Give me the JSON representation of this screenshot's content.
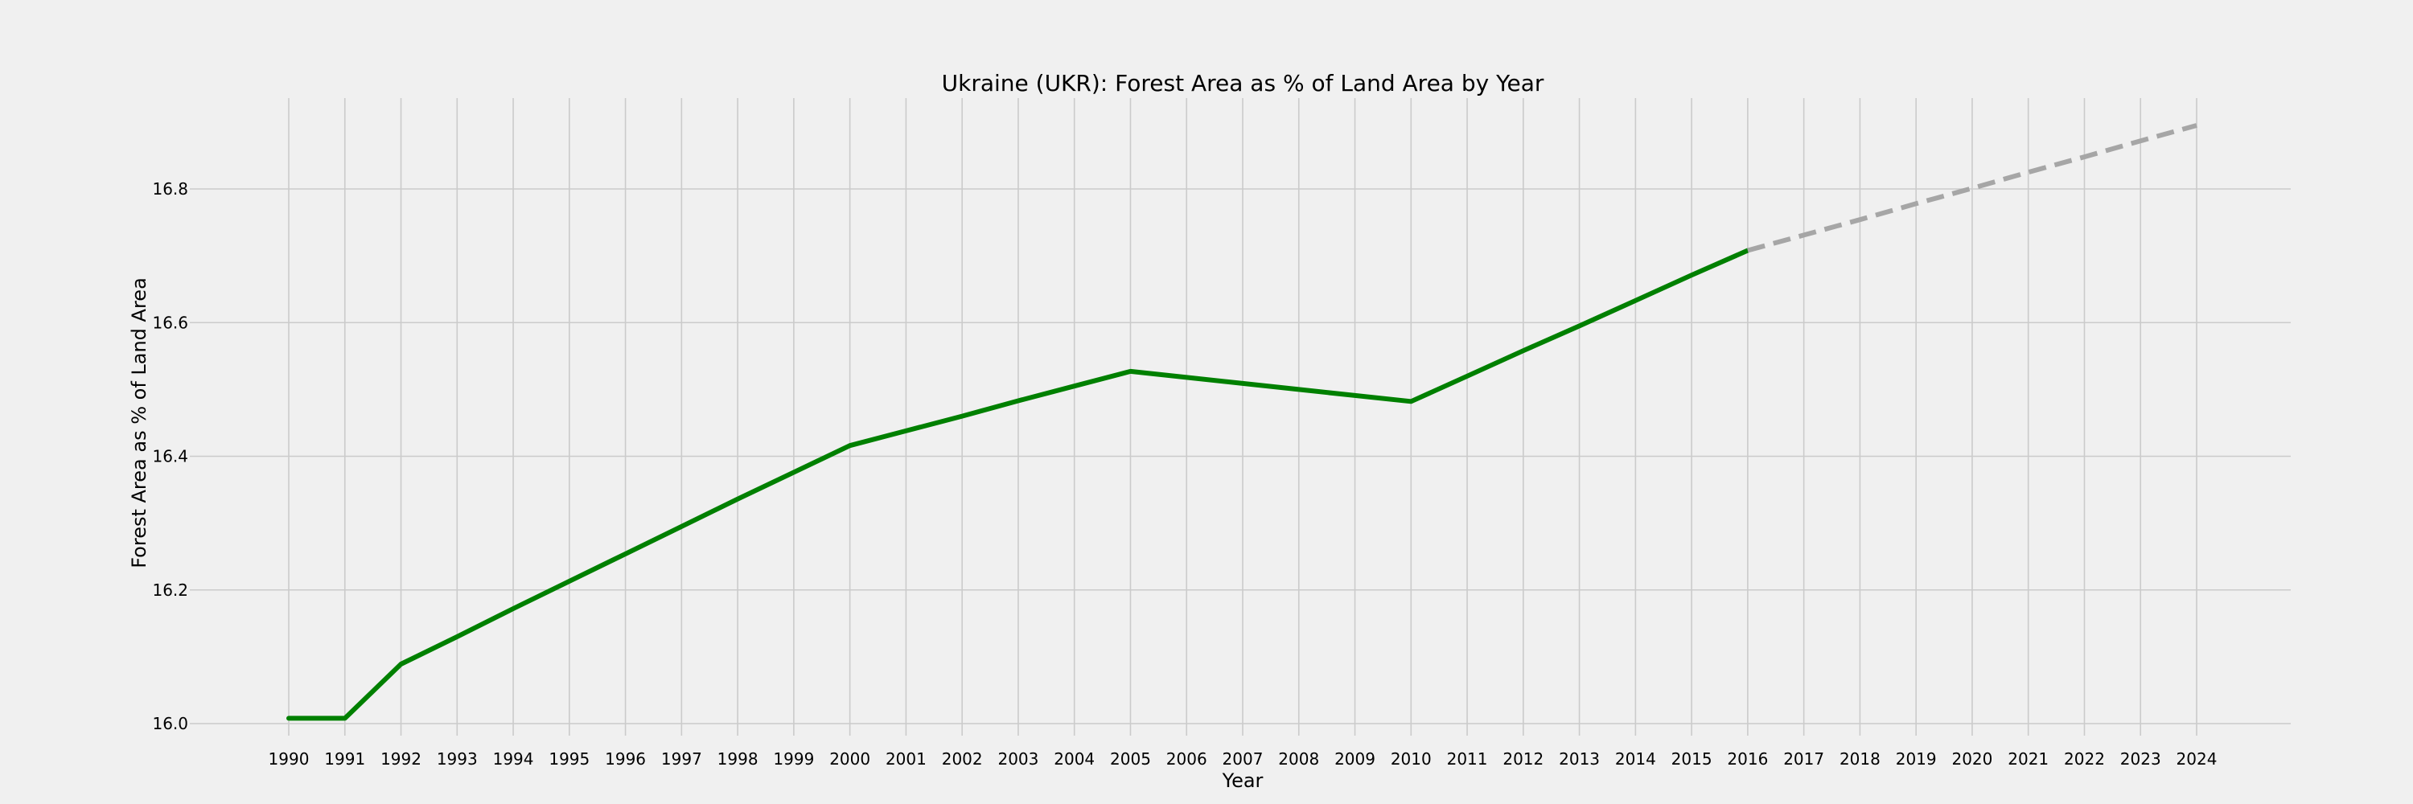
{
  "chart_data": {
    "type": "line",
    "title": "Ukraine (UKR): Forest Area as % of Land Area by Year",
    "xlabel": "Year",
    "ylabel": "Forest Area as % of Land Area",
    "xlim": [
      1990,
      2024
    ],
    "ylim": [
      15.97,
      16.93
    ],
    "x_ticks": [
      1990,
      1991,
      1992,
      1993,
      1994,
      1995,
      1996,
      1997,
      1998,
      1999,
      2000,
      2001,
      2002,
      2003,
      2004,
      2005,
      2006,
      2007,
      2008,
      2009,
      2010,
      2011,
      2012,
      2013,
      2014,
      2015,
      2016,
      2017,
      2018,
      2019,
      2020,
      2021,
      2022,
      2023,
      2024
    ],
    "y_ticks": [
      16.0,
      16.2,
      16.4,
      16.6,
      16.8
    ],
    "grid": true,
    "series": [
      {
        "style": "solid",
        "color": "#008000",
        "x": [
          1990,
          1991,
          1992,
          1993,
          1994,
          1995,
          1996,
          1997,
          1998,
          1999,
          2000,
          2001,
          2002,
          2003,
          2004,
          2005,
          2006,
          2007,
          2008,
          2009,
          2010,
          2011,
          2012,
          2013,
          2014,
          2015,
          2016
        ],
        "values": [
          16.008,
          16.008,
          16.089,
          16.13,
          16.172,
          16.213,
          16.254,
          16.295,
          16.336,
          16.376,
          16.416,
          16.438,
          16.46,
          16.483,
          16.505,
          16.527,
          16.518,
          16.509,
          16.5,
          16.491,
          16.482,
          16.52,
          16.558,
          16.595,
          16.633,
          16.671,
          16.708
        ]
      },
      {
        "style": "dashed",
        "color": "#a6a6a6",
        "x": [
          2016,
          2017,
          2018,
          2019,
          2020,
          2021,
          2022,
          2023,
          2024
        ],
        "values": [
          16.708,
          16.731,
          16.754,
          16.778,
          16.801,
          16.825,
          16.848,
          16.872,
          16.895
        ]
      }
    ]
  }
}
